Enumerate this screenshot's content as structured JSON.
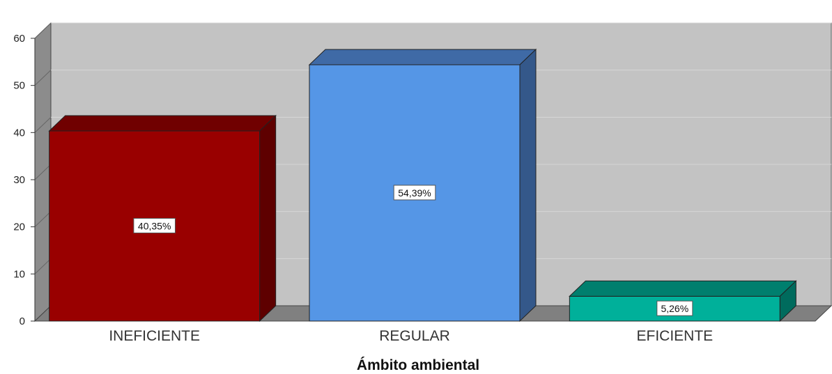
{
  "chart_data": {
    "type": "bar",
    "title": "",
    "xlabel": "Ámbito ambiental",
    "ylabel": "",
    "ylim": [
      0,
      60
    ],
    "yticks": [
      "0",
      "10",
      "20",
      "30",
      "40",
      "50",
      "60"
    ],
    "grid": true,
    "categories": [
      "INEFICIENTE",
      "REGULAR",
      "EFICIENTE"
    ],
    "values": [
      40.35,
      54.39,
      5.26
    ],
    "data_labels": [
      "40,35%",
      "54,39%",
      "5,26%"
    ],
    "colors": [
      "#990000",
      "#5596e6",
      "#00b09a"
    ],
    "side_colors": [
      "#5e0000",
      "#34588a",
      "#006b5d"
    ],
    "top_colors": [
      "#700000",
      "#3f6aa6",
      "#007f6e"
    ],
    "wall_color": "#c3c3c3",
    "floor_color": "#808080"
  }
}
